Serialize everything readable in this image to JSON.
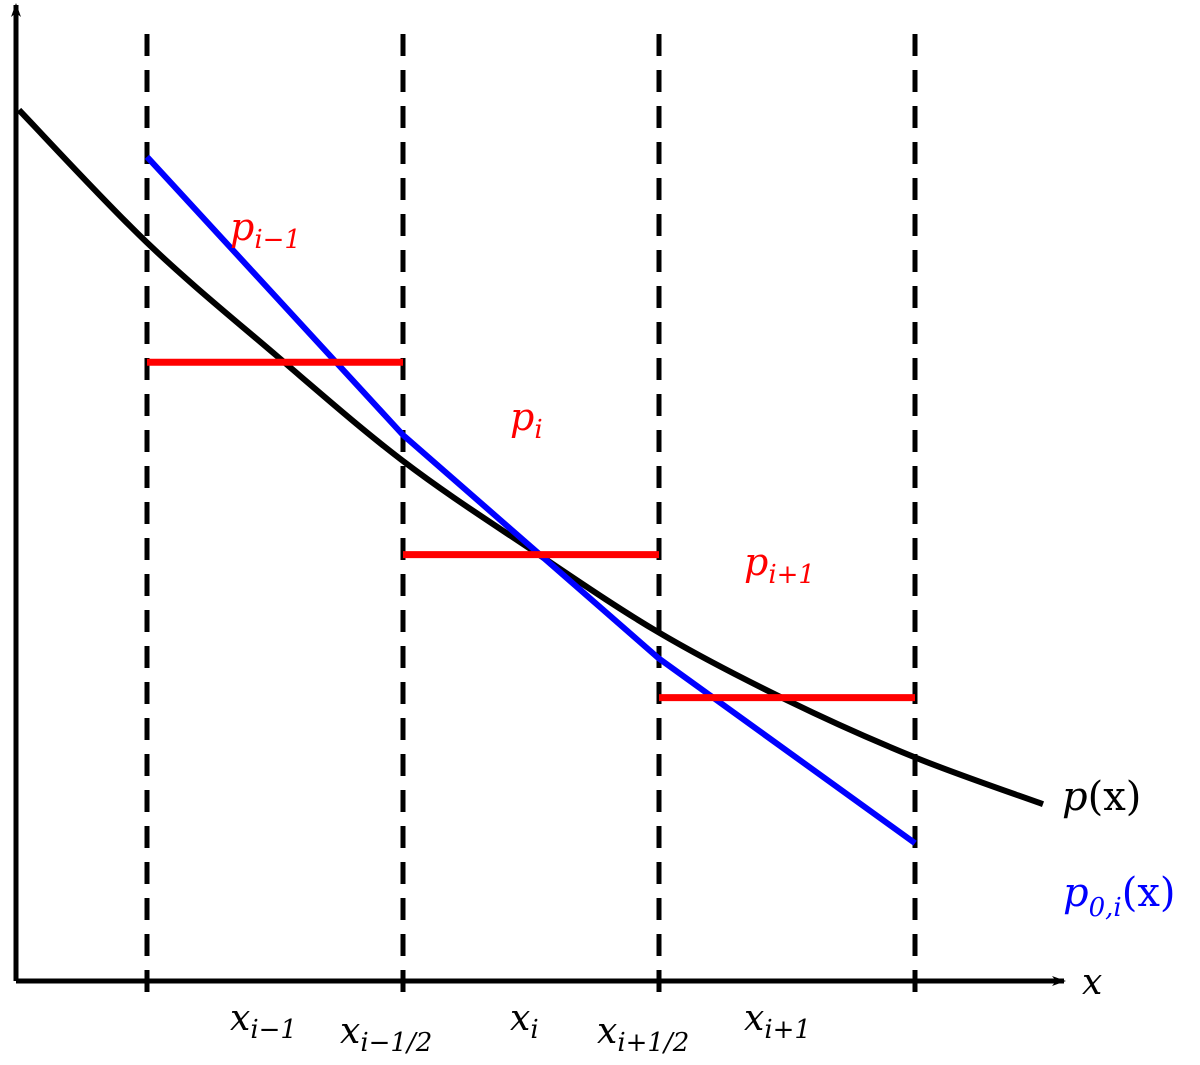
{
  "colors": {
    "axis": "#000000",
    "curve": "#000000",
    "cell_average": "#ff0000",
    "reconstruction": "#0000ff"
  },
  "labels": {
    "x_axis": {
      "base": "x",
      "sub": ""
    },
    "curve": {
      "base": "p",
      "sub": "",
      "suffix": "(x)"
    },
    "reconstruction": {
      "base": "p",
      "sub": "0,i",
      "suffix": "(x)"
    },
    "p_im1": {
      "base": "p",
      "sub": "i−1"
    },
    "p_i": {
      "base": "p",
      "sub": "i"
    },
    "p_ip1": {
      "base": "p",
      "sub": "i+1"
    },
    "ticks": [
      {
        "base": "x",
        "sub": "i−1"
      },
      {
        "base": "x",
        "sub": "i−1/2"
      },
      {
        "base": "x",
        "sub": "i"
      },
      {
        "base": "x",
        "sub": "i+1/2"
      },
      {
        "base": "x",
        "sub": "i+1"
      }
    ]
  },
  "diagram": {
    "interfaces": [
      -1.5,
      -0.5,
      0.5,
      1.5
    ],
    "curve": [
      [
        -2.0,
        3.35
      ],
      [
        -1.5,
        2.84
      ],
      [
        -1.0,
        2.41
      ],
      [
        -0.5,
        2.0
      ],
      [
        0.0,
        1.66
      ],
      [
        0.5,
        1.34
      ],
      [
        1.0,
        1.08
      ],
      [
        1.5,
        0.86
      ],
      [
        2.0,
        0.68
      ]
    ],
    "cell_averages": [
      {
        "x": [
          -1.5,
          -0.5
        ],
        "y": 2.38
      },
      {
        "x": [
          -0.5,
          0.5
        ],
        "y": 1.64
      },
      {
        "x": [
          0.5,
          1.5
        ],
        "y": 1.09
      }
    ],
    "reconstruction": [
      [
        -1.5,
        3.17
      ],
      [
        -0.5,
        2.1
      ],
      [
        0.5,
        1.24
      ],
      [
        1.5,
        0.53
      ]
    ]
  }
}
